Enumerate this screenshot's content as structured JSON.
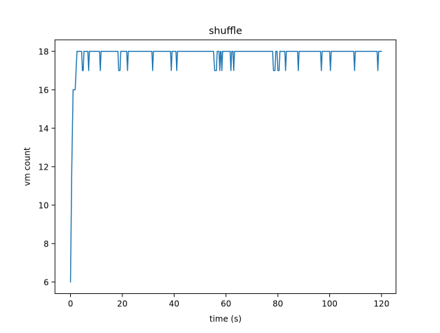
{
  "chart_data": {
    "type": "line",
    "title": "shuffle",
    "xlabel": "time (s)",
    "ylabel": "vm count",
    "xlim": [
      -5.98,
      125.6
    ],
    "ylim": [
      5.4,
      18.6
    ],
    "xticks": [
      0,
      20,
      40,
      60,
      80,
      100,
      120
    ],
    "yticks": [
      6,
      8,
      10,
      12,
      14,
      16,
      18
    ],
    "xtick_labels": [
      "0",
      "20",
      "40",
      "60",
      "80",
      "100",
      "120"
    ],
    "ytick_labels": [
      "6",
      "8",
      "10",
      "12",
      "14",
      "16",
      "18"
    ],
    "grid": false,
    "series": [
      {
        "color": "#1f77b4",
        "points": [
          [
            0,
            6
          ],
          [
            0.5,
            12
          ],
          [
            1.0,
            16
          ],
          [
            1.8,
            16
          ],
          [
            2.5,
            18
          ],
          [
            4.3,
            18
          ],
          [
            4.6,
            17
          ],
          [
            4.9,
            17
          ],
          [
            5.2,
            18
          ],
          [
            6.7,
            18
          ],
          [
            7.0,
            17
          ],
          [
            7.3,
            18
          ],
          [
            11.2,
            18
          ],
          [
            11.5,
            17
          ],
          [
            11.8,
            18
          ],
          [
            18.3,
            18
          ],
          [
            18.6,
            17
          ],
          [
            19.1,
            17
          ],
          [
            19.4,
            18
          ],
          [
            21.7,
            18
          ],
          [
            22.0,
            17
          ],
          [
            22.3,
            18
          ],
          [
            31.4,
            18
          ],
          [
            31.7,
            17
          ],
          [
            32.0,
            18
          ],
          [
            38.6,
            18
          ],
          [
            38.9,
            17
          ],
          [
            39.2,
            18
          ],
          [
            40.7,
            18
          ],
          [
            41.0,
            17
          ],
          [
            41.3,
            18
          ],
          [
            55.2,
            18
          ],
          [
            55.6,
            17
          ],
          [
            56.3,
            17
          ],
          [
            56.6,
            18
          ],
          [
            57.3,
            18
          ],
          [
            57.6,
            17
          ],
          [
            57.9,
            18
          ],
          [
            58.1,
            18
          ],
          [
            58.4,
            17
          ],
          [
            58.7,
            18
          ],
          [
            61.6,
            18
          ],
          [
            61.9,
            17
          ],
          [
            62.2,
            18
          ],
          [
            62.7,
            18
          ],
          [
            63.0,
            17
          ],
          [
            63.3,
            18
          ],
          [
            78.0,
            18
          ],
          [
            78.3,
            17
          ],
          [
            78.9,
            17
          ],
          [
            79.2,
            18
          ],
          [
            79.7,
            18
          ],
          [
            80.0,
            17
          ],
          [
            80.5,
            17
          ],
          [
            80.8,
            18
          ],
          [
            82.7,
            18
          ],
          [
            83.0,
            17
          ],
          [
            83.3,
            18
          ],
          [
            87.6,
            18
          ],
          [
            87.9,
            17
          ],
          [
            88.2,
            18
          ],
          [
            96.5,
            18
          ],
          [
            96.8,
            17
          ],
          [
            97.1,
            18
          ],
          [
            100.0,
            18
          ],
          [
            100.3,
            17
          ],
          [
            100.6,
            18
          ],
          [
            109.3,
            18
          ],
          [
            109.6,
            17
          ],
          [
            109.9,
            18
          ],
          [
            118.3,
            18
          ],
          [
            118.6,
            17
          ],
          [
            118.9,
            18
          ],
          [
            120,
            18
          ]
        ]
      }
    ]
  }
}
